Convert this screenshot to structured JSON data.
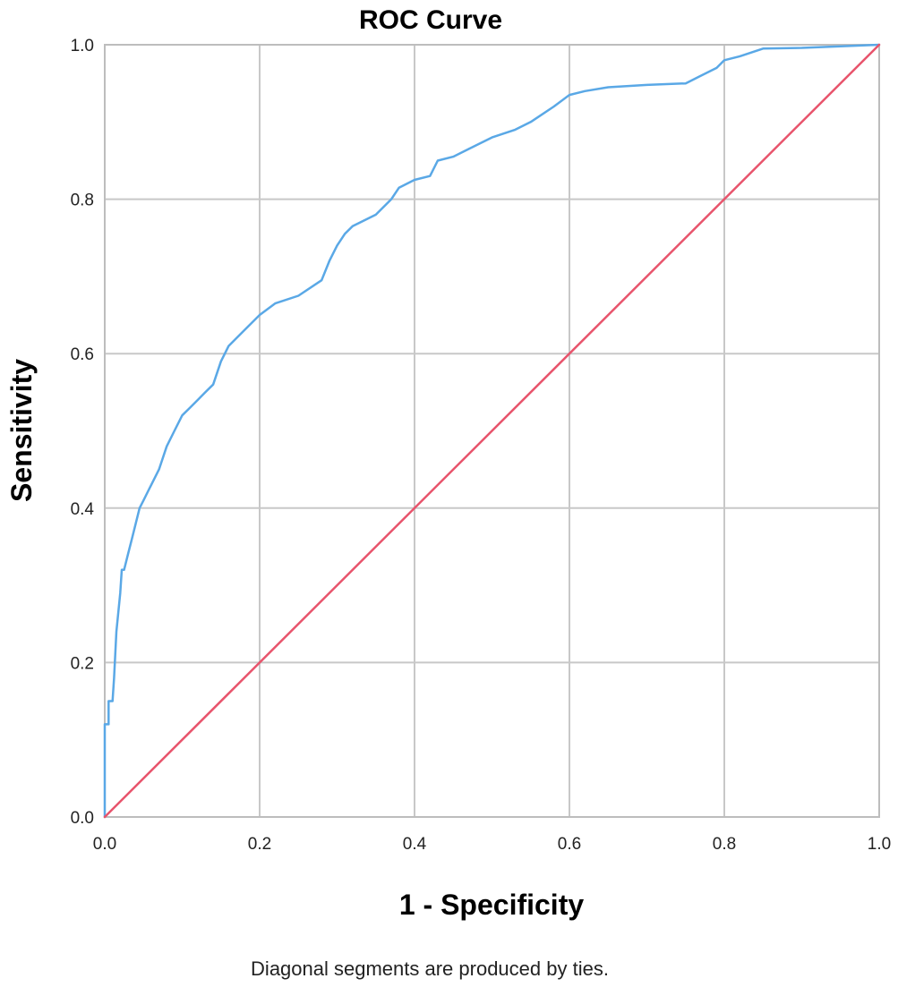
{
  "chart_data": {
    "type": "line",
    "title": "ROC Curve",
    "xlabel": "1 - Specificity",
    "ylabel": "Sensitivity",
    "footnote": "Diagonal segments are produced by ties.",
    "xlim": [
      0,
      1
    ],
    "ylim": [
      0,
      1
    ],
    "grid": true,
    "xticks": [
      "0.0",
      "0.2",
      "0.4",
      "0.6",
      "0.8",
      "1.0"
    ],
    "yticks": [
      "0.0",
      "0.2",
      "0.4",
      "0.6",
      "0.8",
      "1.0"
    ],
    "series": [
      {
        "color": "#5aa8e6",
        "x": [
          0.0,
          0.0,
          0.005,
          0.005,
          0.01,
          0.012,
          0.015,
          0.02,
          0.022,
          0.025,
          0.03,
          0.035,
          0.04,
          0.045,
          0.05,
          0.055,
          0.06,
          0.07,
          0.08,
          0.09,
          0.1,
          0.11,
          0.12,
          0.13,
          0.14,
          0.15,
          0.16,
          0.17,
          0.18,
          0.2,
          0.22,
          0.25,
          0.28,
          0.29,
          0.3,
          0.31,
          0.32,
          0.33,
          0.35,
          0.37,
          0.38,
          0.4,
          0.42,
          0.43,
          0.45,
          0.47,
          0.5,
          0.53,
          0.55,
          0.58,
          0.6,
          0.62,
          0.65,
          0.7,
          0.75,
          0.77,
          0.79,
          0.8,
          0.82,
          0.85,
          0.9,
          0.95,
          1.0
        ],
        "y": [
          0.0,
          0.12,
          0.12,
          0.15,
          0.15,
          0.18,
          0.24,
          0.29,
          0.32,
          0.32,
          0.34,
          0.36,
          0.38,
          0.4,
          0.41,
          0.42,
          0.43,
          0.45,
          0.48,
          0.5,
          0.52,
          0.53,
          0.54,
          0.55,
          0.56,
          0.59,
          0.61,
          0.62,
          0.63,
          0.65,
          0.665,
          0.675,
          0.695,
          0.72,
          0.74,
          0.755,
          0.765,
          0.77,
          0.78,
          0.8,
          0.815,
          0.825,
          0.83,
          0.85,
          0.855,
          0.865,
          0.88,
          0.89,
          0.9,
          0.92,
          0.935,
          0.94,
          0.945,
          0.948,
          0.95,
          0.96,
          0.97,
          0.98,
          0.985,
          0.995,
          0.996,
          0.998,
          1.0
        ]
      },
      {
        "color": "#e8546c",
        "x": [
          0,
          1
        ],
        "y": [
          0,
          1
        ]
      }
    ]
  }
}
